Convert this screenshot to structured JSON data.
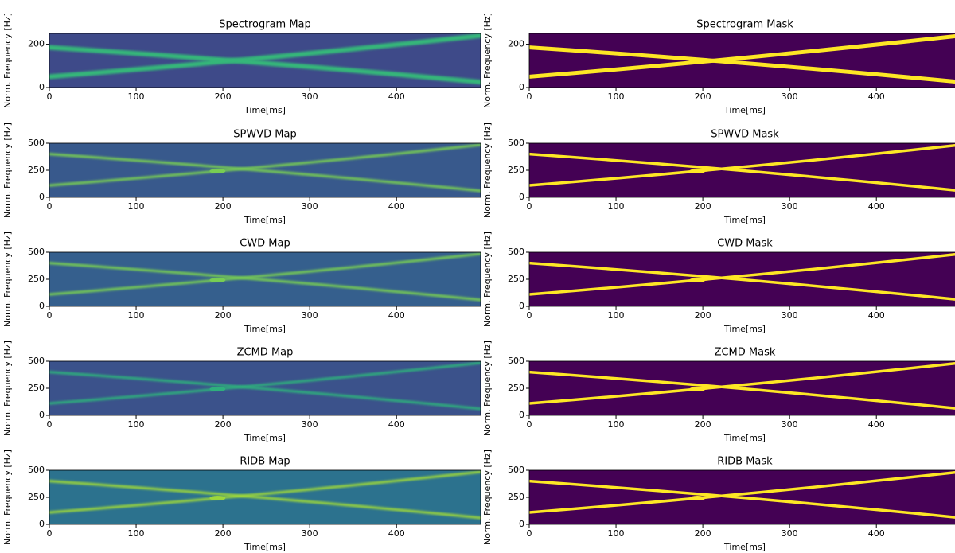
{
  "chart_data": [
    {
      "type": "image",
      "title": "Spectrogram Map",
      "xlabel": "Time[ms]",
      "ylabel": "Norm. Frequency [Hz]",
      "xlim": [
        0,
        497
      ],
      "xticks": [
        0,
        100,
        200,
        300,
        400
      ],
      "ylim": [
        0,
        250
      ],
      "yticks": [
        0,
        200
      ],
      "background": "#3e4a89",
      "line_color": "#35b779"
    },
    {
      "type": "image",
      "title": "Spectrogram Mask",
      "xlabel": "Time[ms]",
      "ylabel": "Norm. Frequency [Hz]",
      "xlim": [
        0,
        497
      ],
      "xticks": [
        0,
        100,
        200,
        300,
        400
      ],
      "ylim": [
        0,
        250
      ],
      "yticks": [
        0,
        200
      ],
      "background": "#440154",
      "line_color": "#fde725"
    },
    {
      "type": "image",
      "title": "SPWVD Map",
      "xlabel": "Time[ms]",
      "ylabel": "Norm. Frequency [Hz]",
      "xlim": [
        0,
        497
      ],
      "xticks": [
        0,
        100,
        200,
        300,
        400
      ],
      "ylim": [
        0,
        500
      ],
      "yticks": [
        0,
        250,
        500
      ],
      "background": "#38598c",
      "line_color": "#7ad151"
    },
    {
      "type": "image",
      "title": "SPWVD Mask",
      "xlabel": "Time[ms]",
      "ylabel": "Norm. Frequency [Hz]",
      "xlim": [
        0,
        497
      ],
      "xticks": [
        0,
        100,
        200,
        300,
        400
      ],
      "ylim": [
        0,
        500
      ],
      "yticks": [
        0,
        250,
        500
      ],
      "background": "#440154",
      "line_color": "#fde725"
    },
    {
      "type": "image",
      "title": "CWD Map",
      "xlabel": "Time[ms]",
      "ylabel": "Norm. Frequency [Hz]",
      "xlim": [
        0,
        497
      ],
      "xticks": [
        0,
        100,
        200,
        300,
        400
      ],
      "ylim": [
        0,
        500
      ],
      "yticks": [
        0,
        250,
        500
      ],
      "background": "#355f8d",
      "line_color": "#7ad151"
    },
    {
      "type": "image",
      "title": "CWD Mask",
      "xlabel": "Time[ms]",
      "ylabel": "Norm. Frequency [Hz]",
      "xlim": [
        0,
        497
      ],
      "xticks": [
        0,
        100,
        200,
        300,
        400
      ],
      "ylim": [
        0,
        500
      ],
      "yticks": [
        0,
        250,
        500
      ],
      "background": "#440154",
      "line_color": "#fde725"
    },
    {
      "type": "image",
      "title": "ZCMD Map",
      "xlabel": "Time[ms]",
      "ylabel": "Norm. Frequency [Hz]",
      "xlim": [
        0,
        497
      ],
      "xticks": [
        0,
        100,
        200,
        300,
        400
      ],
      "ylim": [
        0,
        500
      ],
      "yticks": [
        0,
        250,
        500
      ],
      "background": "#3b528b",
      "line_color": "#2fb47c"
    },
    {
      "type": "image",
      "title": "ZCMD Mask",
      "xlabel": "Time[ms]",
      "ylabel": "Norm. Frequency [Hz]",
      "xlim": [
        0,
        497
      ],
      "xticks": [
        0,
        100,
        200,
        300,
        400
      ],
      "ylim": [
        0,
        500
      ],
      "yticks": [
        0,
        250,
        500
      ],
      "background": "#440154",
      "line_color": "#fde725"
    },
    {
      "type": "image",
      "title": "RIDB Map",
      "xlabel": "Time[ms]",
      "ylabel": "Norm. Frequency [Hz]",
      "xlim": [
        0,
        497
      ],
      "xticks": [
        0,
        100,
        200,
        300,
        400
      ],
      "ylim": [
        0,
        500
      ],
      "yticks": [
        0,
        250,
        500
      ],
      "background": "#2c728e",
      "line_color": "#a0da39"
    },
    {
      "type": "image",
      "title": "RIDB Mask",
      "xlabel": "Time[ms]",
      "ylabel": "Norm. Frequency [Hz]",
      "xlim": [
        0,
        497
      ],
      "xticks": [
        0,
        100,
        200,
        300,
        400
      ],
      "ylim": [
        0,
        500
      ],
      "yticks": [
        0,
        250,
        500
      ],
      "background": "#440154",
      "line_color": "#fde725"
    }
  ]
}
